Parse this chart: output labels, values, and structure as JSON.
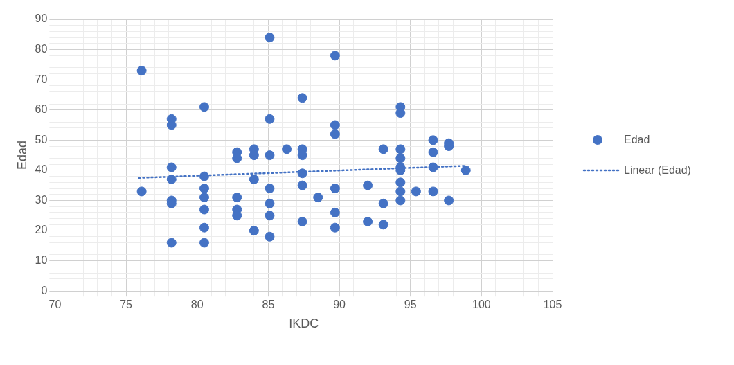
{
  "chart_data": {
    "type": "scatter",
    "xlabel": "IKDC",
    "ylabel": "Edad",
    "xlim": [
      70,
      105
    ],
    "ylim": [
      0,
      90
    ],
    "xticks": [
      70,
      {
        "value": 71,
        "label": null
      },
      {
        "value": 72,
        "label": null
      },
      {
        "value": 73,
        "label": null
      },
      {
        "value": 74,
        "label": null
      },
      75,
      {
        "value": 76,
        "label": null
      },
      {
        "value": 77,
        "label": null
      },
      {
        "value": 78,
        "label": null
      },
      {
        "value": 79,
        "label": null
      },
      80,
      {
        "value": 81,
        "label": null
      },
      {
        "value": 82,
        "label": null
      },
      {
        "value": 83,
        "label": null
      },
      {
        "value": 84,
        "label": null
      },
      85,
      {
        "value": 86,
        "label": null
      },
      {
        "value": 87,
        "label": null
      },
      {
        "value": 88,
        "label": null
      },
      {
        "value": 89,
        "label": null
      },
      90,
      {
        "value": 91,
        "label": null
      },
      {
        "value": 92,
        "label": null
      },
      {
        "value": 93,
        "label": null
      },
      {
        "value": 94,
        "label": null
      },
      95,
      {
        "value": 96,
        "label": null
      },
      {
        "value": 97,
        "label": null
      },
      {
        "value": 98,
        "label": null
      },
      {
        "value": 99,
        "label": null
      },
      100,
      {
        "value": 101,
        "label": null
      },
      {
        "value": 102,
        "label": null
      },
      {
        "value": 103,
        "label": null
      },
      {
        "value": 104,
        "label": null
      },
      105
    ],
    "yticks": [
      0,
      {
        "value": 2,
        "label": null
      },
      {
        "value": 4,
        "label": null
      },
      {
        "value": 6,
        "label": null
      },
      {
        "value": 8,
        "label": null
      },
      10,
      {
        "value": 12,
        "label": null
      },
      {
        "value": 14,
        "label": null
      },
      {
        "value": 16,
        "label": null
      },
      {
        "value": 18,
        "label": null
      },
      20,
      {
        "value": 22,
        "label": null
      },
      {
        "value": 24,
        "label": null
      },
      {
        "value": 26,
        "label": null
      },
      {
        "value": 28,
        "label": null
      },
      30,
      {
        "value": 32,
        "label": null
      },
      {
        "value": 34,
        "label": null
      },
      {
        "value": 36,
        "label": null
      },
      {
        "value": 38,
        "label": null
      },
      40,
      {
        "value": 42,
        "label": null
      },
      {
        "value": 44,
        "label": null
      },
      {
        "value": 46,
        "label": null
      },
      {
        "value": 48,
        "label": null
      },
      50,
      {
        "value": 52,
        "label": null
      },
      {
        "value": 54,
        "label": null
      },
      {
        "value": 56,
        "label": null
      },
      {
        "value": 58,
        "label": null
      },
      60,
      {
        "value": 62,
        "label": null
      },
      {
        "value": 64,
        "label": null
      },
      {
        "value": 66,
        "label": null
      },
      {
        "value": 68,
        "label": null
      },
      70,
      {
        "value": 72,
        "label": null
      },
      {
        "value": 74,
        "label": null
      },
      {
        "value": 76,
        "label": null
      },
      {
        "value": 78,
        "label": null
      },
      80,
      {
        "value": 82,
        "label": null
      },
      {
        "value": 84,
        "label": null
      },
      {
        "value": 86,
        "label": null
      },
      {
        "value": 88,
        "label": null
      },
      90
    ],
    "grid": true,
    "legend": "right",
    "marker": "circle",
    "series": [
      {
        "name": "Edad",
        "type": "scatter",
        "color": "#4472c4",
        "x": [
          76.1,
          76.1,
          78.2,
          78.2,
          78.2,
          78.2,
          78.2,
          78.2,
          78.2,
          80.5,
          80.5,
          80.5,
          80.5,
          80.5,
          80.5,
          80.5,
          82.8,
          82.8,
          82.8,
          82.8,
          82.8,
          84,
          84,
          84,
          84,
          85.1,
          85.1,
          85.1,
          85.1,
          85.1,
          85.1,
          85.1,
          86.3,
          87.4,
          87.4,
          87.4,
          87.4,
          87.4,
          87.4,
          88.5,
          89.7,
          89.7,
          89.7,
          89.7,
          89.7,
          89.7,
          92,
          92,
          93.1,
          93.1,
          93.1,
          94.3,
          94.3,
          94.3,
          94.3,
          94.3,
          94.3,
          94.3,
          94.3,
          94.3,
          95.4,
          96.6,
          96.6,
          96.6,
          96.6,
          97.7,
          97.7,
          97.7,
          98.9
        ],
        "values": [
          73,
          33,
          57,
          55,
          41,
          37,
          30,
          29,
          16,
          61,
          38,
          34,
          31,
          27,
          21,
          16,
          46,
          44,
          31,
          27,
          25,
          47,
          45,
          37,
          20,
          84,
          57,
          45,
          34,
          29,
          25,
          18,
          47,
          64,
          47,
          45,
          39,
          35,
          23,
          31,
          78,
          55,
          52,
          34,
          26,
          21,
          35,
          23,
          47,
          29,
          22,
          61,
          59,
          47,
          44,
          41,
          40,
          36,
          33,
          30,
          33,
          50,
          46,
          41,
          33,
          49,
          48,
          30,
          40
        ]
      },
      {
        "name": "Linear (Edad)",
        "type": "line",
        "color": "#4472c4",
        "line_style": "dotted",
        "marker": "none",
        "x": [
          75.9,
          98.9
        ],
        "values": [
          37.5,
          41.5
        ]
      }
    ]
  }
}
